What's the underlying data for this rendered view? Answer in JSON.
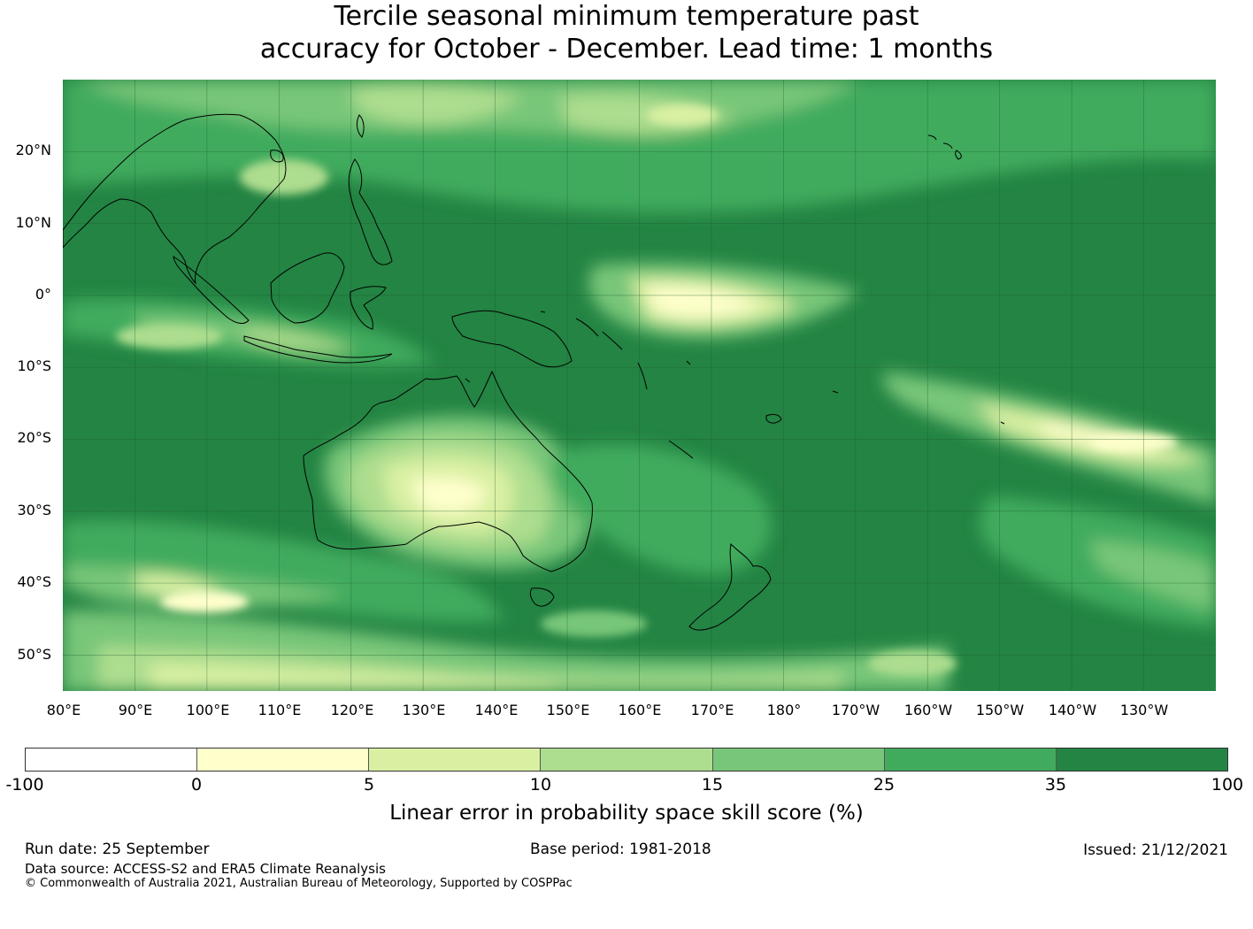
{
  "title": {
    "line1": "Tercile seasonal minimum temperature past",
    "line2": "accuracy for October - December. Lead time: 1 months"
  },
  "map": {
    "type": "raster skill-score map",
    "region": "Western/South Pacific, Maritime Continent and Australia",
    "lat_ticks": [
      "20°N",
      "10°N",
      "0°",
      "10°S",
      "20°S",
      "30°S",
      "40°S",
      "50°S"
    ],
    "lon_ticks": [
      "80°E",
      "90°E",
      "100°E",
      "110°E",
      "120°E",
      "130°E",
      "140°E",
      "150°E",
      "160°E",
      "170°E",
      "180°",
      "170°W",
      "160°W",
      "150°W",
      "140°W",
      "130°W"
    ],
    "gridlines": true,
    "coastlines": true
  },
  "colorbar": {
    "labels": [
      "-100",
      "0",
      "5",
      "10",
      "15",
      "25",
      "35",
      "100"
    ],
    "colors": [
      "#ffffff",
      "#ffffcc",
      "#d9f0a3",
      "#addd8e",
      "#78c679",
      "#41ab5d",
      "#238443"
    ],
    "title": "Linear error in probability space skill score (%)"
  },
  "footer": {
    "run_date": "Run date: 25 September",
    "base_period": "Base period: 1981-2018",
    "issued": "Issued: 21/12/2021",
    "data_source": "Data source: ACCESS-S2 and ERA5 Climate Reanalysis",
    "copyright": "© Commonwealth of Australia 2021, Australian Bureau of Meteorology, Supported by COSPPac"
  }
}
